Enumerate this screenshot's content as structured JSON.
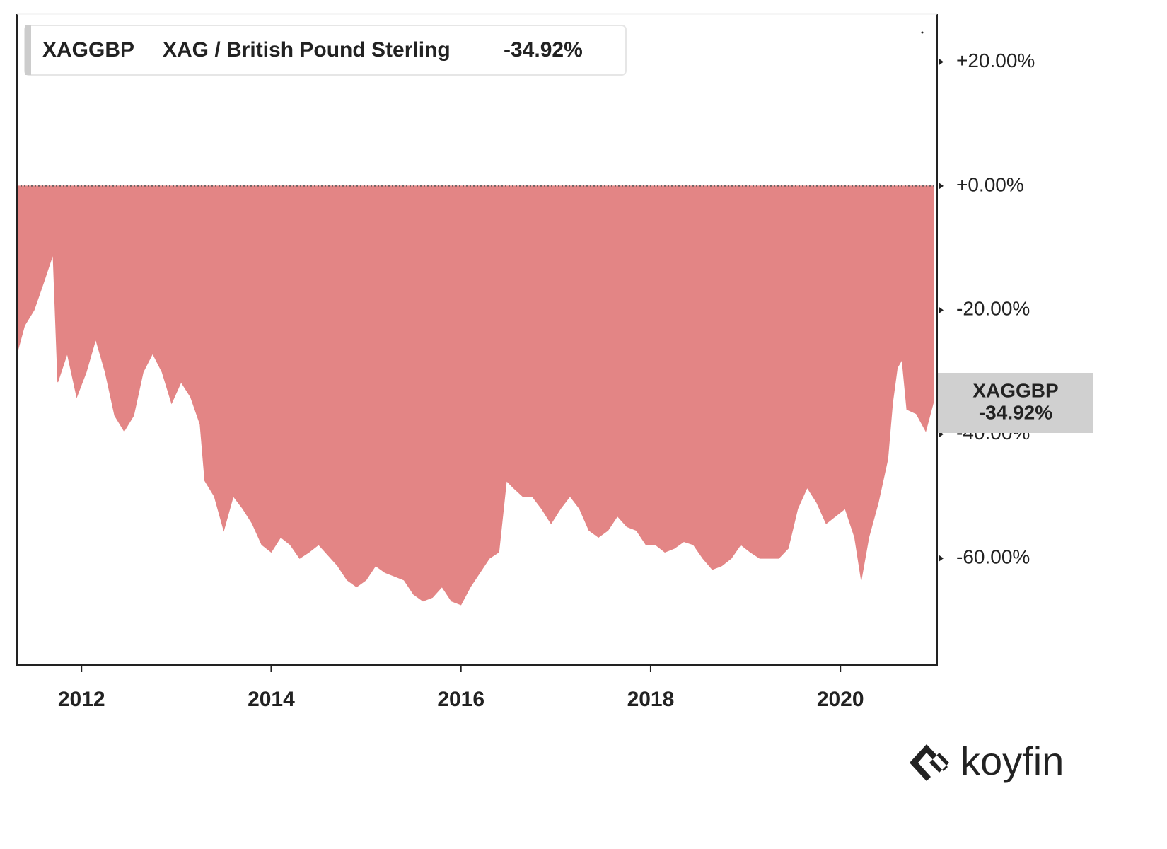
{
  "brand": "koyfin",
  "chart_data": {
    "type": "area",
    "xlim": [
      2011.32,
      2021.02
    ],
    "xticks": [
      2012,
      2014,
      2016,
      2018,
      2020
    ],
    "ylim": [
      -77.2,
      27.7
    ],
    "yticks": [
      {
        "value": 20,
        "label": "+20.00%"
      },
      {
        "value": 0,
        "label": "+0.00%"
      },
      {
        "value": -20,
        "label": "-20.00%"
      },
      {
        "value": -40,
        "label": "-40.00%"
      },
      {
        "value": -60,
        "label": "-60.00%"
      }
    ],
    "series": [
      {
        "name": "XAGGBP",
        "description": "XAG / British Pound Sterling",
        "change_label": "-34.92%",
        "color": "#e38585",
        "x": [
          2011.32,
          2011.4,
          2011.5,
          2011.6,
          2011.7,
          2011.75,
          2011.85,
          2011.95,
          2012.05,
          2012.15,
          2012.25,
          2012.35,
          2012.45,
          2012.55,
          2012.65,
          2012.75,
          2012.85,
          2012.95,
          2013.05,
          2013.15,
          2013.25,
          2013.3,
          2013.4,
          2013.5,
          2013.6,
          2013.7,
          2013.8,
          2013.9,
          2014.0,
          2014.1,
          2014.2,
          2014.3,
          2014.4,
          2014.5,
          2014.6,
          2014.7,
          2014.8,
          2014.9,
          2015.0,
          2015.1,
          2015.2,
          2015.3,
          2015.4,
          2015.5,
          2015.6,
          2015.7,
          2015.8,
          2015.9,
          2016.0,
          2016.1,
          2016.2,
          2016.3,
          2016.4,
          2016.48,
          2016.55,
          2016.65,
          2016.75,
          2016.85,
          2016.95,
          2017.05,
          2017.15,
          2017.25,
          2017.35,
          2017.45,
          2017.55,
          2017.65,
          2017.75,
          2017.85,
          2017.95,
          2018.05,
          2018.15,
          2018.25,
          2018.35,
          2018.45,
          2018.55,
          2018.65,
          2018.75,
          2018.85,
          2018.95,
          2019.05,
          2019.15,
          2019.25,
          2019.35,
          2019.45,
          2019.55,
          2019.65,
          2019.75,
          2019.85,
          2019.95,
          2020.05,
          2020.15,
          2020.22,
          2020.3,
          2020.4,
          2020.5,
          2020.55,
          2020.6,
          2020.65,
          2020.7,
          2020.8,
          2020.9,
          2020.98
        ],
        "values": [
          -27,
          -22.5,
          -20,
          -15.6,
          -11,
          -31.6,
          -27,
          -34,
          -30,
          -24.7,
          -30,
          -37,
          -39.5,
          -37,
          -30,
          -27,
          -30,
          -35,
          -31.6,
          -34,
          -38.4,
          -47.5,
          -50,
          -55.5,
          -50,
          -52,
          -54.4,
          -57.8,
          -59,
          -56.6,
          -57.8,
          -60,
          -59,
          -57.8,
          -59.5,
          -61.2,
          -63.5,
          -64.6,
          -63.5,
          -61.2,
          -62.3,
          -62.9,
          -63.5,
          -65.8,
          -66.9,
          -66.3,
          -64.6,
          -66.9,
          -67.5,
          -64.6,
          -62.3,
          -60,
          -59,
          -47.5,
          -48.6,
          -50,
          -50,
          -52,
          -54.4,
          -52,
          -50,
          -52,
          -55.5,
          -56.6,
          -55.5,
          -53.2,
          -54.9,
          -55.5,
          -57.8,
          -57.8,
          -59,
          -58.4,
          -57.3,
          -57.8,
          -60,
          -61.8,
          -61.2,
          -60,
          -57.8,
          -59,
          -60,
          -60,
          -60,
          -58.4,
          -52,
          -48.6,
          -51,
          -54.4,
          -53.2,
          -52,
          -56.6,
          -63.5,
          -56.6,
          -51,
          -44,
          -35,
          -29.3,
          -28,
          -36,
          -36.7,
          -39.5,
          -34.92
        ]
      }
    ]
  }
}
